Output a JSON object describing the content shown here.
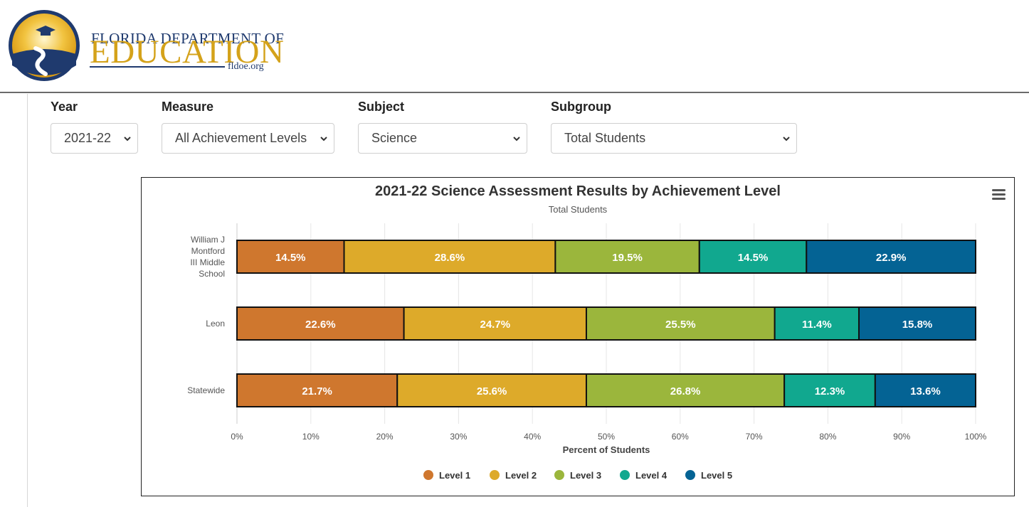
{
  "header": {
    "logo_line1": "FLORIDA DEPARTMENT OF",
    "logo_line2": "EDUCATION",
    "logo_url": "fldoe.org"
  },
  "filters": [
    {
      "label": "Year",
      "value": "2021-22"
    },
    {
      "label": "Measure",
      "value": "All Achievement Levels"
    },
    {
      "label": "Subject",
      "value": "Science"
    },
    {
      "label": "Subgroup",
      "value": "Total Students"
    }
  ],
  "chart_data": {
    "type": "bar",
    "orientation": "horizontal",
    "stacked": true,
    "title": "2021-22 Science Assessment Results by Achievement Level",
    "subtitle": "Total Students",
    "xlabel": "Percent of Students",
    "xlim": [
      0,
      100
    ],
    "x_ticks": [
      "0%",
      "10%",
      "20%",
      "30%",
      "40%",
      "50%",
      "60%",
      "70%",
      "80%",
      "90%",
      "100%"
    ],
    "categories": [
      "William J Montford III Middle School",
      "Leon",
      "Statewide"
    ],
    "series": [
      {
        "name": "Level 1",
        "color": "#cf772e",
        "values": [
          14.5,
          22.6,
          21.7
        ],
        "labels": [
          "14.5%",
          "22.6%",
          "21.7%"
        ]
      },
      {
        "name": "Level 2",
        "color": "#ddaa2a",
        "values": [
          28.6,
          24.7,
          25.6
        ],
        "labels": [
          "28.6%",
          "24.7%",
          "25.6%"
        ]
      },
      {
        "name": "Level 3",
        "color": "#9bb63c",
        "values": [
          19.5,
          25.5,
          26.8
        ],
        "labels": [
          "19.5%",
          "25.5%",
          "26.8%"
        ]
      },
      {
        "name": "Level 4",
        "color": "#11a88f",
        "values": [
          14.5,
          11.4,
          12.3
        ],
        "labels": [
          "14.5%",
          "11.4%",
          "12.3%"
        ]
      },
      {
        "name": "Level 5",
        "color": "#046394",
        "values": [
          22.9,
          15.8,
          13.6
        ],
        "labels": [
          "22.9%",
          "15.8%",
          "13.6%"
        ]
      }
    ],
    "grid": true,
    "legend_position": "bottom"
  }
}
